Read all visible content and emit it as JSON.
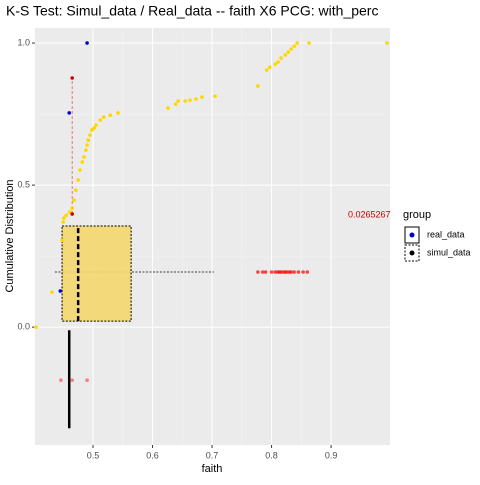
{
  "chart_data": {
    "type": "scatter",
    "title": "K-S Test: Simul_data / Real_data -- faith X6 PCG: with_perc",
    "x_label": "faith",
    "y_label": "Cumulative Distribution",
    "annotation": "0.0265267",
    "annotation_color": "#cc0000",
    "xlim": [
      0.4025,
      0.999
    ],
    "ylim": [
      -0.415,
      1.053
    ],
    "xticks": [
      {
        "value": 0.5,
        "label": "0.5"
      },
      {
        "value": 0.6,
        "label": "0.6"
      },
      {
        "value": 0.7,
        "label": "0.7"
      },
      {
        "value": 0.8,
        "label": "0.8"
      },
      {
        "value": 0.9,
        "label": "0.9"
      }
    ],
    "yticks": [
      {
        "value": 0,
        "label": "0.0"
      },
      {
        "value": 0.5,
        "label": "0.5"
      },
      {
        "value": 1,
        "label": "1.0"
      }
    ],
    "grid": true,
    "legend": {
      "title": "group",
      "entries": [
        "real_data",
        "simul_data"
      ]
    },
    "series": [
      {
        "color": "#ffd700",
        "opacity": 1,
        "x": [
          0.404,
          0.431,
          0.448,
          0.45,
          0.451,
          0.455,
          0.461,
          0.465,
          0.468,
          0.471,
          0.475,
          0.478,
          0.482,
          0.485,
          0.488,
          0.49,
          0.492,
          0.495,
          0.498,
          0.502,
          0.505,
          0.512,
          0.518,
          0.529,
          0.542,
          0.626,
          0.639,
          0.643,
          0.655,
          0.663,
          0.673,
          0.683,
          0.705,
          0.777,
          0.792,
          0.797,
          0.806,
          0.811,
          0.816,
          0.823,
          0.828,
          0.833,
          0.838,
          0.843,
          0.863,
          0.994
        ],
        "values": [
          0.0,
          0.123,
          0.306,
          0.37,
          0.384,
          0.394,
          0.405,
          0.419,
          0.447,
          0.482,
          0.518,
          0.553,
          0.581,
          0.599,
          0.623,
          0.641,
          0.658,
          0.676,
          0.694,
          0.701,
          0.711,
          0.729,
          0.739,
          0.746,
          0.754,
          0.771,
          0.785,
          0.796,
          0.796,
          0.799,
          0.803,
          0.81,
          0.813,
          0.849,
          0.905,
          0.915,
          0.926,
          0.933,
          0.947,
          0.958,
          0.968,
          0.979,
          0.989,
          1.0,
          1.0,
          1.0
        ]
      },
      {
        "color": "#0000cc",
        "opacity": 1,
        "x": [
          0.49,
          0.46,
          0.445
        ],
        "values": [
          1.0,
          0.754,
          0.127
        ]
      },
      {
        "color": "#cc0000",
        "opacity": 1,
        "x": [
          0.465,
          0.465
        ],
        "values": [
          0.877,
          0.398
        ]
      },
      {
        "color": "#ff0000",
        "opacity": 0.7,
        "x": [
          0.777,
          0.785,
          0.79,
          0.8,
          0.806,
          0.81,
          0.813,
          0.816,
          0.82,
          0.823,
          0.826,
          0.83,
          0.833,
          0.838,
          0.845,
          0.853,
          0.86
        ],
        "values": [
          0.194,
          0.194,
          0.194,
          0.194,
          0.194,
          0.194,
          0.194,
          0.194,
          0.194,
          0.194,
          0.194,
          0.194,
          0.194,
          0.194,
          0.194,
          0.194,
          0.194
        ]
      },
      {
        "color": "#f08080",
        "opacity": 1,
        "x": [
          0.446,
          0.465,
          0.49
        ],
        "values": [
          -0.187,
          -0.187,
          -0.187
        ]
      }
    ],
    "ks_segment": {
      "x": 0.465,
      "y": [
        0.398,
        0.877
      ],
      "color": "#e9746a"
    },
    "box": {
      "x": [
        0.448,
        0.564
      ],
      "y": [
        0.021,
        0.356
      ],
      "median": 0.475,
      "whisker_y": 0.194,
      "whisker_x": [
        0.436,
        0.703
      ],
      "color": "#f5d76e"
    },
    "real_box": {
      "x": 0.46,
      "y": [
        -0.356,
        -0.011
      ]
    }
  }
}
